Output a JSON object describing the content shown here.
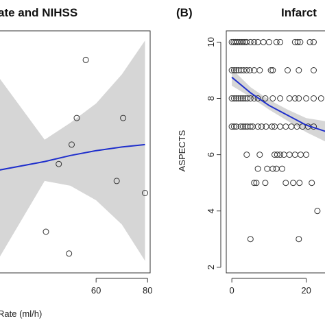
{
  "chart_data": [
    {
      "type": "scatter",
      "panel_label": "",
      "title": "ate and NIHSS",
      "xlabel": "Rate (ml/h)",
      "ylabel": "",
      "xlim": [
        20,
        81
      ],
      "ylim": [
        0,
        10
      ],
      "x_ticks": [
        60,
        80
      ],
      "y_ticks": [],
      "points": [
        {
          "x": 56,
          "y": 8.8
        },
        {
          "x": 52.5,
          "y": 6.4
        },
        {
          "x": 70.5,
          "y": 6.4
        },
        {
          "x": 50.5,
          "y": 5.3
        },
        {
          "x": 45.5,
          "y": 4.5
        },
        {
          "x": 68,
          "y": 3.8
        },
        {
          "x": 79,
          "y": 3.3
        },
        {
          "x": 40.5,
          "y": 1.7
        },
        {
          "x": 49.5,
          "y": 0.8
        }
      ],
      "fit": {
        "x": [
          20,
          40,
          50,
          60,
          70,
          79
        ],
        "y": [
          4.2,
          4.6,
          4.85,
          5.05,
          5.2,
          5.3
        ],
        "ci_lower": [
          0.2,
          3.8,
          3.6,
          3.0,
          2.0,
          0.5
        ],
        "ci_upper": [
          8.4,
          5.5,
          6.2,
          7.0,
          8.2,
          9.6
        ]
      },
      "grid": false,
      "colors": {
        "fit": "#1f2fcc",
        "band": "#d6d6d6",
        "points": "#333333"
      }
    },
    {
      "type": "scatter",
      "panel_label": "(B)",
      "title": "Infarct",
      "xlabel": "",
      "ylabel": "ASPECTS",
      "xlim": [
        -1.5,
        28
      ],
      "ylim": [
        1.8,
        10.4
      ],
      "x_ticks": [
        0,
        20
      ],
      "y_ticks": [
        2,
        4,
        6,
        8,
        10
      ],
      "points": [
        {
          "x": 0,
          "y": 10
        },
        {
          "x": 0.5,
          "y": 10
        },
        {
          "x": 1,
          "y": 10
        },
        {
          "x": 1.5,
          "y": 10
        },
        {
          "x": 2,
          "y": 10
        },
        {
          "x": 2.5,
          "y": 10
        },
        {
          "x": 3,
          "y": 10
        },
        {
          "x": 3.5,
          "y": 10
        },
        {
          "x": 4,
          "y": 10
        },
        {
          "x": 5,
          "y": 10
        },
        {
          "x": 6,
          "y": 10
        },
        {
          "x": 7,
          "y": 10
        },
        {
          "x": 8.5,
          "y": 10
        },
        {
          "x": 10,
          "y": 10
        },
        {
          "x": 12,
          "y": 10
        },
        {
          "x": 13,
          "y": 10
        },
        {
          "x": 17,
          "y": 10
        },
        {
          "x": 17.7,
          "y": 10
        },
        {
          "x": 18.4,
          "y": 10
        },
        {
          "x": 21,
          "y": 10
        },
        {
          "x": 22,
          "y": 10
        },
        {
          "x": 0,
          "y": 9
        },
        {
          "x": 0.6,
          "y": 9
        },
        {
          "x": 1.2,
          "y": 9
        },
        {
          "x": 1.8,
          "y": 9
        },
        {
          "x": 2.5,
          "y": 9
        },
        {
          "x": 3.2,
          "y": 9
        },
        {
          "x": 4,
          "y": 9
        },
        {
          "x": 4.8,
          "y": 9
        },
        {
          "x": 6,
          "y": 9
        },
        {
          "x": 7.5,
          "y": 9
        },
        {
          "x": 10.5,
          "y": 9
        },
        {
          "x": 11,
          "y": 9
        },
        {
          "x": 15,
          "y": 9
        },
        {
          "x": 18,
          "y": 9
        },
        {
          "x": 22,
          "y": 9
        },
        {
          "x": 0,
          "y": 8
        },
        {
          "x": 0.6,
          "y": 8
        },
        {
          "x": 1.2,
          "y": 8
        },
        {
          "x": 1.8,
          "y": 8
        },
        {
          "x": 2.4,
          "y": 8
        },
        {
          "x": 3,
          "y": 8
        },
        {
          "x": 3.6,
          "y": 8
        },
        {
          "x": 4.2,
          "y": 8
        },
        {
          "x": 5,
          "y": 8
        },
        {
          "x": 6,
          "y": 8
        },
        {
          "x": 7,
          "y": 8
        },
        {
          "x": 9,
          "y": 8
        },
        {
          "x": 11,
          "y": 8
        },
        {
          "x": 13,
          "y": 8
        },
        {
          "x": 15.5,
          "y": 8
        },
        {
          "x": 17,
          "y": 8
        },
        {
          "x": 18,
          "y": 8
        },
        {
          "x": 20,
          "y": 8
        },
        {
          "x": 22,
          "y": 8
        },
        {
          "x": 24,
          "y": 8
        },
        {
          "x": 0,
          "y": 7
        },
        {
          "x": 0.6,
          "y": 7
        },
        {
          "x": 1.2,
          "y": 7
        },
        {
          "x": 2.4,
          "y": 7
        },
        {
          "x": 3,
          "y": 7
        },
        {
          "x": 3.6,
          "y": 7
        },
        {
          "x": 4.2,
          "y": 7
        },
        {
          "x": 5,
          "y": 7
        },
        {
          "x": 5.6,
          "y": 7
        },
        {
          "x": 7,
          "y": 7
        },
        {
          "x": 8,
          "y": 7
        },
        {
          "x": 9.2,
          "y": 7
        },
        {
          "x": 10.8,
          "y": 7
        },
        {
          "x": 11.5,
          "y": 7
        },
        {
          "x": 13,
          "y": 7
        },
        {
          "x": 14.5,
          "y": 7
        },
        {
          "x": 16,
          "y": 7
        },
        {
          "x": 17.5,
          "y": 7
        },
        {
          "x": 19,
          "y": 7
        },
        {
          "x": 20.5,
          "y": 7
        },
        {
          "x": 22,
          "y": 7
        },
        {
          "x": 4,
          "y": 6
        },
        {
          "x": 7.5,
          "y": 6
        },
        {
          "x": 11.5,
          "y": 6
        },
        {
          "x": 12.2,
          "y": 6
        },
        {
          "x": 13,
          "y": 6
        },
        {
          "x": 14,
          "y": 6
        },
        {
          "x": 15.5,
          "y": 6
        },
        {
          "x": 17,
          "y": 6
        },
        {
          "x": 18.5,
          "y": 6
        },
        {
          "x": 20,
          "y": 6
        },
        {
          "x": 7,
          "y": 5.5
        },
        {
          "x": 9.5,
          "y": 5.5
        },
        {
          "x": 11,
          "y": 5.5
        },
        {
          "x": 12,
          "y": 5.5
        },
        {
          "x": 13.5,
          "y": 5.5
        },
        {
          "x": 6,
          "y": 5
        },
        {
          "x": 6.6,
          "y": 5
        },
        {
          "x": 9,
          "y": 5
        },
        {
          "x": 14.5,
          "y": 5
        },
        {
          "x": 16.5,
          "y": 5
        },
        {
          "x": 18.2,
          "y": 5
        },
        {
          "x": 21.5,
          "y": 5
        },
        {
          "x": 23,
          "y": 4
        },
        {
          "x": 5,
          "y": 3
        },
        {
          "x": 18,
          "y": 3
        }
      ],
      "fit": {
        "x": [
          0,
          5,
          10,
          15,
          20,
          27
        ],
        "y": [
          8.75,
          8.2,
          7.75,
          7.4,
          7.05,
          6.75
        ],
        "ci_lower": [
          8.45,
          8.05,
          7.6,
          7.2,
          6.8,
          6.35
        ],
        "ci_upper": [
          9.05,
          8.4,
          7.95,
          7.6,
          7.3,
          7.15
        ]
      },
      "grid": false,
      "colors": {
        "fit": "#1f2fcc",
        "band": "#d6d6d6",
        "points": "#333333"
      }
    }
  ]
}
